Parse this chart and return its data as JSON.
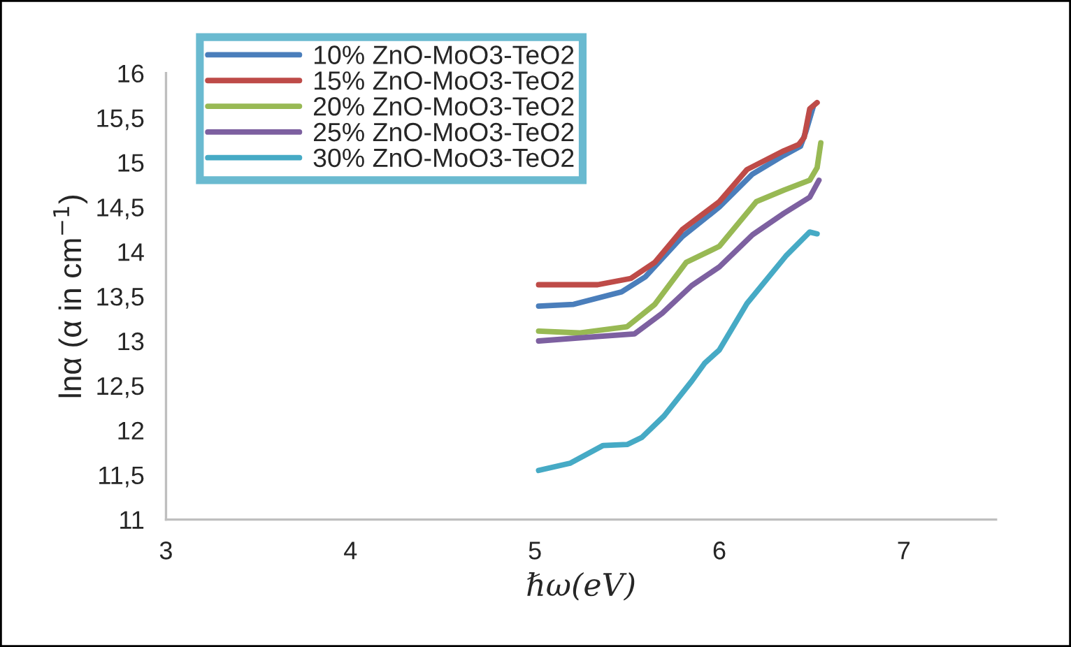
{
  "chart_data": {
    "type": "line",
    "xlabel": "ℏω(eV)",
    "ylabel": "lnα (α in cm$^{−1}$)",
    "xlim": [
      3,
      7.5
    ],
    "xticks": [
      3,
      4,
      5,
      6,
      7
    ],
    "ylim": [
      11,
      16
    ],
    "yticks": [
      {
        "value": 11,
        "label": "11"
      },
      {
        "value": 11.5,
        "label": "11,5"
      },
      {
        "value": 12,
        "label": "12"
      },
      {
        "value": 12.5,
        "label": "12,5"
      },
      {
        "value": 13,
        "label": "13"
      },
      {
        "value": 13.5,
        "label": "13,5"
      },
      {
        "value": 14,
        "label": "14"
      },
      {
        "value": 14.5,
        "label": "14,5"
      },
      {
        "value": 15,
        "label": "15"
      },
      {
        "value": 15.5,
        "label": "15,5"
      },
      {
        "value": 16,
        "label": "16"
      }
    ],
    "grid": false,
    "legend": "top left",
    "marker": "none",
    "line_style": "solid",
    "series": [
      {
        "name": "10% ZnO-MoO3-TeO2",
        "color": "#4a7ebb",
        "x": [
          5.02,
          5.21,
          5.47,
          5.6,
          5.8,
          6.0,
          6.18,
          6.35,
          6.44,
          6.47,
          6.51
        ],
        "values": [
          13.39,
          13.41,
          13.55,
          13.72,
          14.17,
          14.5,
          14.87,
          15.08,
          15.18,
          15.35,
          15.63
        ]
      },
      {
        "name": "15% ZnO-MoO3-TeO2",
        "color": "#be4b48",
        "x": [
          5.02,
          5.34,
          5.52,
          5.65,
          5.8,
          6.0,
          6.15,
          6.35,
          6.43,
          6.46,
          6.49,
          6.53
        ],
        "values": [
          13.63,
          13.63,
          13.7,
          13.88,
          14.25,
          14.56,
          14.92,
          15.13,
          15.2,
          15.28,
          15.6,
          15.67
        ]
      },
      {
        "name": "20% ZnO-MoO3-TeO2",
        "color": "#98b954",
        "x": [
          5.02,
          5.24,
          5.5,
          5.65,
          5.82,
          6.0,
          6.2,
          6.35,
          6.49,
          6.53,
          6.55
        ],
        "values": [
          13.11,
          13.09,
          13.16,
          13.41,
          13.88,
          14.06,
          14.56,
          14.69,
          14.8,
          14.94,
          15.22
        ]
      },
      {
        "name": "25% ZnO-MoO3-TeO2",
        "color": "#7d60a0",
        "x": [
          5.02,
          5.34,
          5.54,
          5.69,
          5.85,
          6.0,
          6.18,
          6.35,
          6.49,
          6.54
        ],
        "values": [
          13.0,
          13.05,
          13.08,
          13.31,
          13.62,
          13.83,
          14.19,
          14.43,
          14.61,
          14.8
        ]
      },
      {
        "name": "30% ZnO-MoO3-TeO2",
        "color": "#46aac5",
        "x": [
          5.02,
          5.19,
          5.37,
          5.5,
          5.58,
          5.7,
          5.85,
          5.92,
          6.0,
          6.15,
          6.36,
          6.49,
          6.53
        ],
        "values": [
          11.55,
          11.63,
          11.83,
          11.84,
          11.92,
          12.16,
          12.55,
          12.75,
          12.9,
          13.42,
          13.95,
          14.22,
          14.2
        ]
      }
    ]
  }
}
